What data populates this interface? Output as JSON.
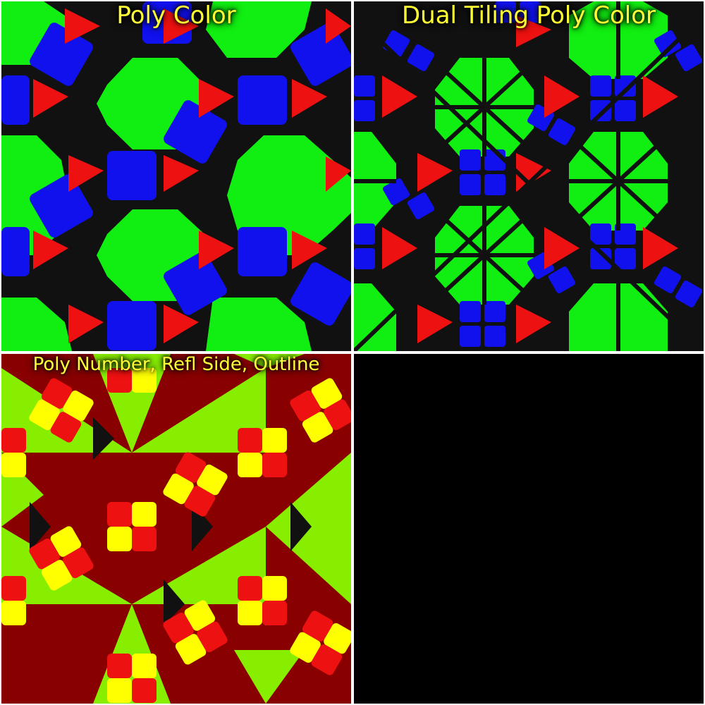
{
  "panels": [
    {
      "id": "poly-color",
      "label": "Poly Color"
    },
    {
      "id": "dual-tiling-poly-color",
      "label": "Dual Tiling Poly Color"
    },
    {
      "id": "poly-number-refl-side-outline",
      "label": "Poly Number, Refl Side, Outline"
    },
    {
      "id": "empty-panel",
      "label": ""
    }
  ],
  "colors": {
    "green": "#11ee11",
    "blue": "#1111ee",
    "red": "#ee1111",
    "outline": "#111111",
    "yellow": "#ffff00",
    "lime": "#88ee00",
    "maroon": "#880000"
  }
}
